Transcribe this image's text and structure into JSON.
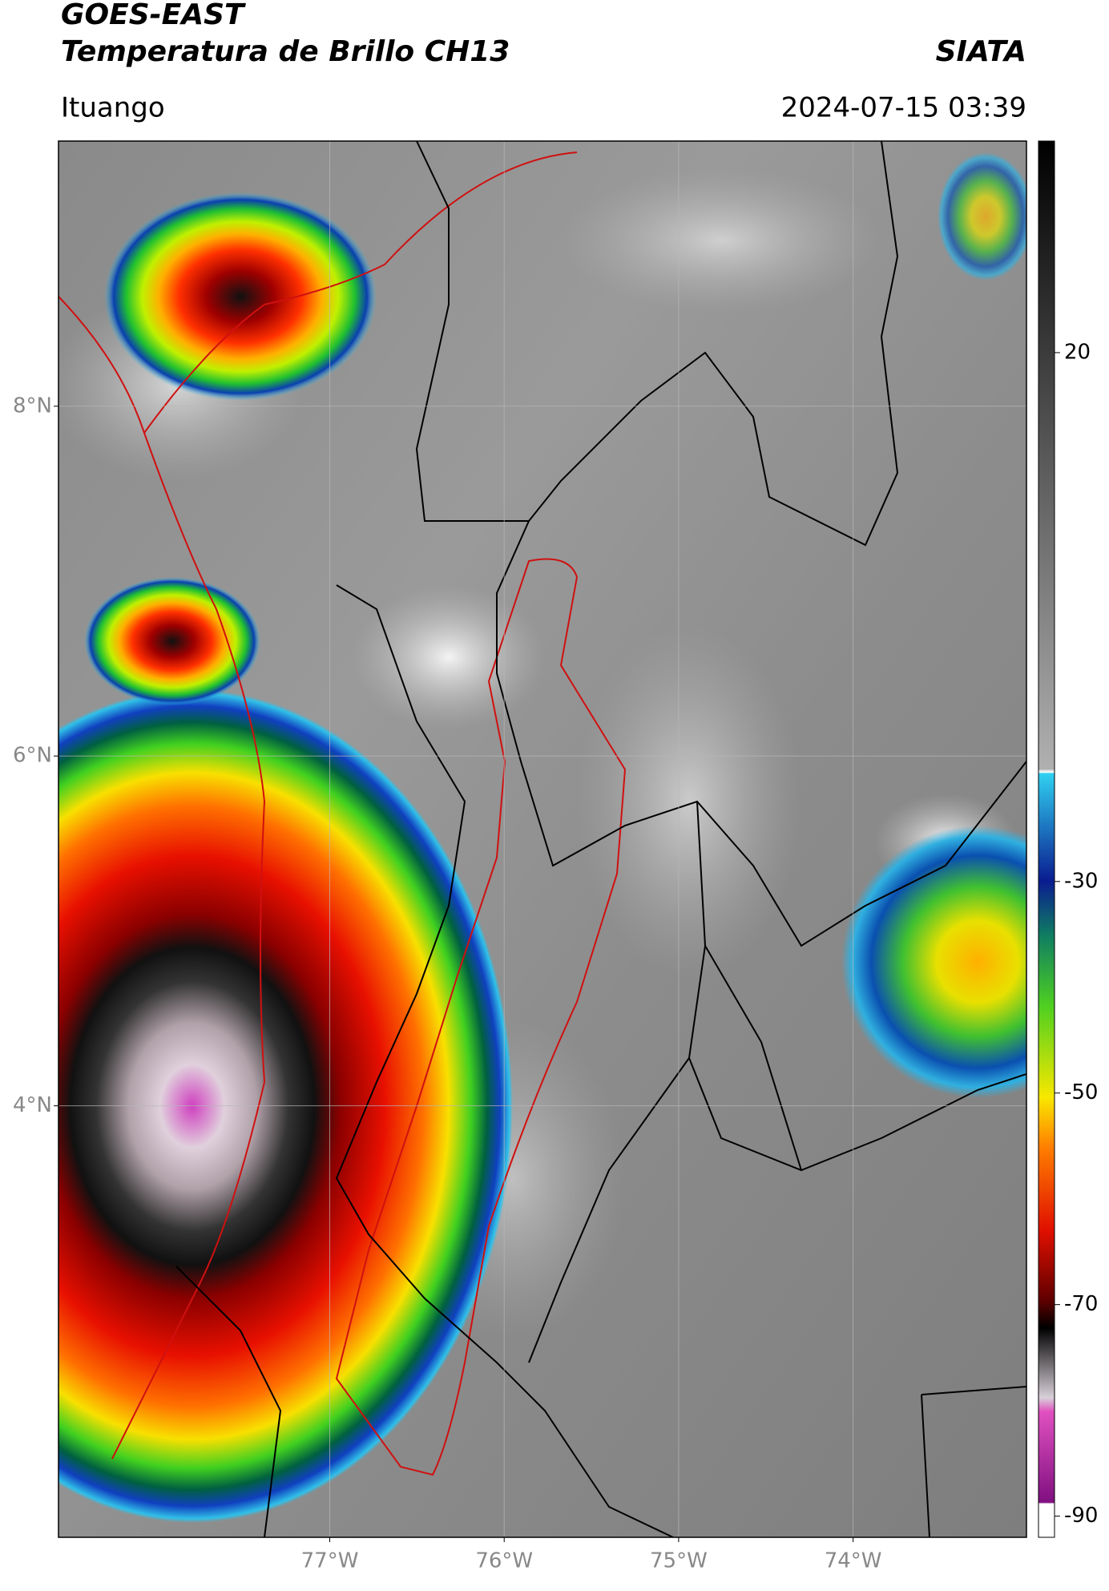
{
  "header": {
    "title_line1": "GOES-EAST",
    "title_line2": "Temperatura de Brillo CH13",
    "source": "SIATA",
    "region": "Ituango",
    "timestamp": "2024-07-15 03:39"
  },
  "map": {
    "lon_range": [
      -78.555,
      -73.006
    ],
    "lat_range": [
      1.533,
      9.516
    ],
    "lon_ticks": [
      {
        "value": -77,
        "label": "77°W"
      },
      {
        "value": -76,
        "label": "76°W"
      },
      {
        "value": -75,
        "label": "75°W"
      },
      {
        "value": -74,
        "label": "74°W"
      }
    ],
    "lat_ticks": [
      {
        "value": 8,
        "label": "8°N"
      },
      {
        "value": 6,
        "label": "6°N"
      },
      {
        "value": 4,
        "label": "4°N"
      }
    ]
  },
  "colorbar": {
    "range": [
      -92,
      40
    ],
    "ticks": [
      20,
      -30,
      -50,
      -70,
      -90
    ]
  }
}
